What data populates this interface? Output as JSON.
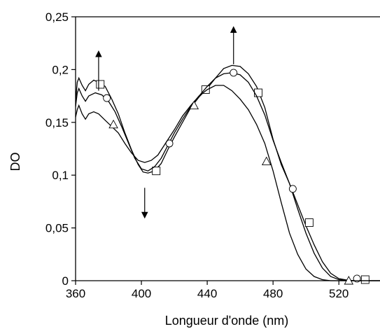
{
  "chart_data": {
    "type": "line",
    "xlabel": "Longueur d'onde (nm)",
    "ylabel": "DO",
    "xlim": [
      360,
      545
    ],
    "ylim": [
      0,
      0.25
    ],
    "x_ticks": [
      360,
      400,
      440,
      480,
      520
    ],
    "x_tick_labels": [
      "360",
      "400",
      "440",
      "480",
      "520"
    ],
    "y_ticks": [
      0,
      0.05,
      0.1,
      0.15,
      0.2,
      0.25
    ],
    "y_tick_labels": [
      "0",
      "0,05",
      "0,1",
      "0,15",
      "0,2",
      "0,25"
    ],
    "grid": false,
    "legend": "none",
    "series": [
      {
        "marker": "square",
        "points": [
          [
            360,
            0.17
          ],
          [
            361,
            0.188
          ],
          [
            362,
            0.192
          ],
          [
            364,
            0.185
          ],
          [
            366,
            0.18
          ],
          [
            368,
            0.186
          ],
          [
            371,
            0.19
          ],
          [
            374,
            0.188
          ],
          [
            378,
            0.184
          ],
          [
            382,
            0.172
          ],
          [
            386,
            0.158
          ],
          [
            390,
            0.14
          ],
          [
            394,
            0.124
          ],
          [
            398,
            0.11
          ],
          [
            401,
            0.103
          ],
          [
            404,
            0.102
          ],
          [
            408,
            0.104
          ],
          [
            412,
            0.111
          ],
          [
            416,
            0.124
          ],
          [
            420,
            0.136
          ],
          [
            425,
            0.15
          ],
          [
            430,
            0.164
          ],
          [
            435,
            0.174
          ],
          [
            440,
            0.182
          ],
          [
            445,
            0.192
          ],
          [
            450,
            0.201
          ],
          [
            455,
            0.204
          ],
          [
            460,
            0.203
          ],
          [
            465,
            0.196
          ],
          [
            470,
            0.184
          ],
          [
            475,
            0.164
          ],
          [
            480,
            0.134
          ],
          [
            485,
            0.11
          ],
          [
            490,
            0.092
          ],
          [
            495,
            0.072
          ],
          [
            500,
            0.052
          ],
          [
            505,
            0.034
          ],
          [
            510,
            0.018
          ],
          [
            515,
            0.007
          ],
          [
            520,
            0.002
          ],
          [
            525,
            0.0005
          ],
          [
            530,
            0.0
          ],
          [
            545,
            0.0
          ]
        ],
        "markers": [
          [
            375,
            0.186
          ],
          [
            409,
            0.104
          ],
          [
            439,
            0.181
          ],
          [
            471,
            0.178
          ],
          [
            502,
            0.055
          ],
          [
            536,
            0.001
          ]
        ]
      },
      {
        "marker": "circle",
        "points": [
          [
            360,
            0.165
          ],
          [
            361,
            0.178
          ],
          [
            362,
            0.182
          ],
          [
            364,
            0.175
          ],
          [
            366,
            0.17
          ],
          [
            368,
            0.175
          ],
          [
            372,
            0.178
          ],
          [
            376,
            0.176
          ],
          [
            380,
            0.17
          ],
          [
            384,
            0.16
          ],
          [
            388,
            0.146
          ],
          [
            392,
            0.131
          ],
          [
            396,
            0.116
          ],
          [
            400,
            0.106
          ],
          [
            404,
            0.104
          ],
          [
            408,
            0.108
          ],
          [
            412,
            0.116
          ],
          [
            416,
            0.128
          ],
          [
            420,
            0.14
          ],
          [
            425,
            0.153
          ],
          [
            430,
            0.165
          ],
          [
            435,
            0.175
          ],
          [
            440,
            0.184
          ],
          [
            445,
            0.192
          ],
          [
            450,
            0.196
          ],
          [
            455,
            0.197
          ],
          [
            460,
            0.195
          ],
          [
            465,
            0.188
          ],
          [
            470,
            0.175
          ],
          [
            475,
            0.157
          ],
          [
            480,
            0.133
          ],
          [
            485,
            0.112
          ],
          [
            490,
            0.092
          ],
          [
            495,
            0.068
          ],
          [
            500,
            0.045
          ],
          [
            505,
            0.026
          ],
          [
            510,
            0.012
          ],
          [
            515,
            0.004
          ],
          [
            520,
            0.001
          ],
          [
            525,
            0.0
          ],
          [
            545,
            0.0
          ]
        ],
        "markers": [
          [
            379,
            0.173
          ],
          [
            417,
            0.13
          ],
          [
            456,
            0.197
          ],
          [
            492,
            0.087
          ],
          [
            531,
            0.002
          ]
        ]
      },
      {
        "marker": "triangle",
        "points": [
          [
            360,
            0.155
          ],
          [
            361,
            0.162
          ],
          [
            362,
            0.166
          ],
          [
            364,
            0.158
          ],
          [
            366,
            0.153
          ],
          [
            368,
            0.158
          ],
          [
            371,
            0.16
          ],
          [
            374,
            0.158
          ],
          [
            378,
            0.152
          ],
          [
            382,
            0.146
          ],
          [
            386,
            0.14
          ],
          [
            390,
            0.13
          ],
          [
            394,
            0.121
          ],
          [
            398,
            0.114
          ],
          [
            402,
            0.112
          ],
          [
            406,
            0.114
          ],
          [
            410,
            0.119
          ],
          [
            415,
            0.131
          ],
          [
            420,
            0.143
          ],
          [
            425,
            0.156
          ],
          [
            430,
            0.166
          ],
          [
            435,
            0.175
          ],
          [
            440,
            0.181
          ],
          [
            445,
            0.185
          ],
          [
            450,
            0.185
          ],
          [
            455,
            0.18
          ],
          [
            460,
            0.172
          ],
          [
            465,
            0.162
          ],
          [
            470,
            0.148
          ],
          [
            475,
            0.13
          ],
          [
            480,
            0.104
          ],
          [
            485,
            0.074
          ],
          [
            490,
            0.045
          ],
          [
            495,
            0.025
          ],
          [
            500,
            0.011
          ],
          [
            505,
            0.004
          ],
          [
            510,
            0.001
          ],
          [
            515,
            0.0
          ],
          [
            545,
            0.0
          ]
        ],
        "markers": [
          [
            383,
            0.148
          ],
          [
            432,
            0.166
          ],
          [
            476,
            0.113
          ],
          [
            526,
            0.0
          ]
        ]
      }
    ],
    "annotations": [
      {
        "type": "arrow",
        "direction": "up",
        "x": 374,
        "y_from": 0.18,
        "y_to": 0.215
      },
      {
        "type": "arrow",
        "direction": "down",
        "x": 402,
        "y_from": 0.088,
        "y_to": 0.062
      },
      {
        "type": "arrow",
        "direction": "up",
        "x": 456,
        "y_from": 0.205,
        "y_to": 0.238
      }
    ]
  }
}
